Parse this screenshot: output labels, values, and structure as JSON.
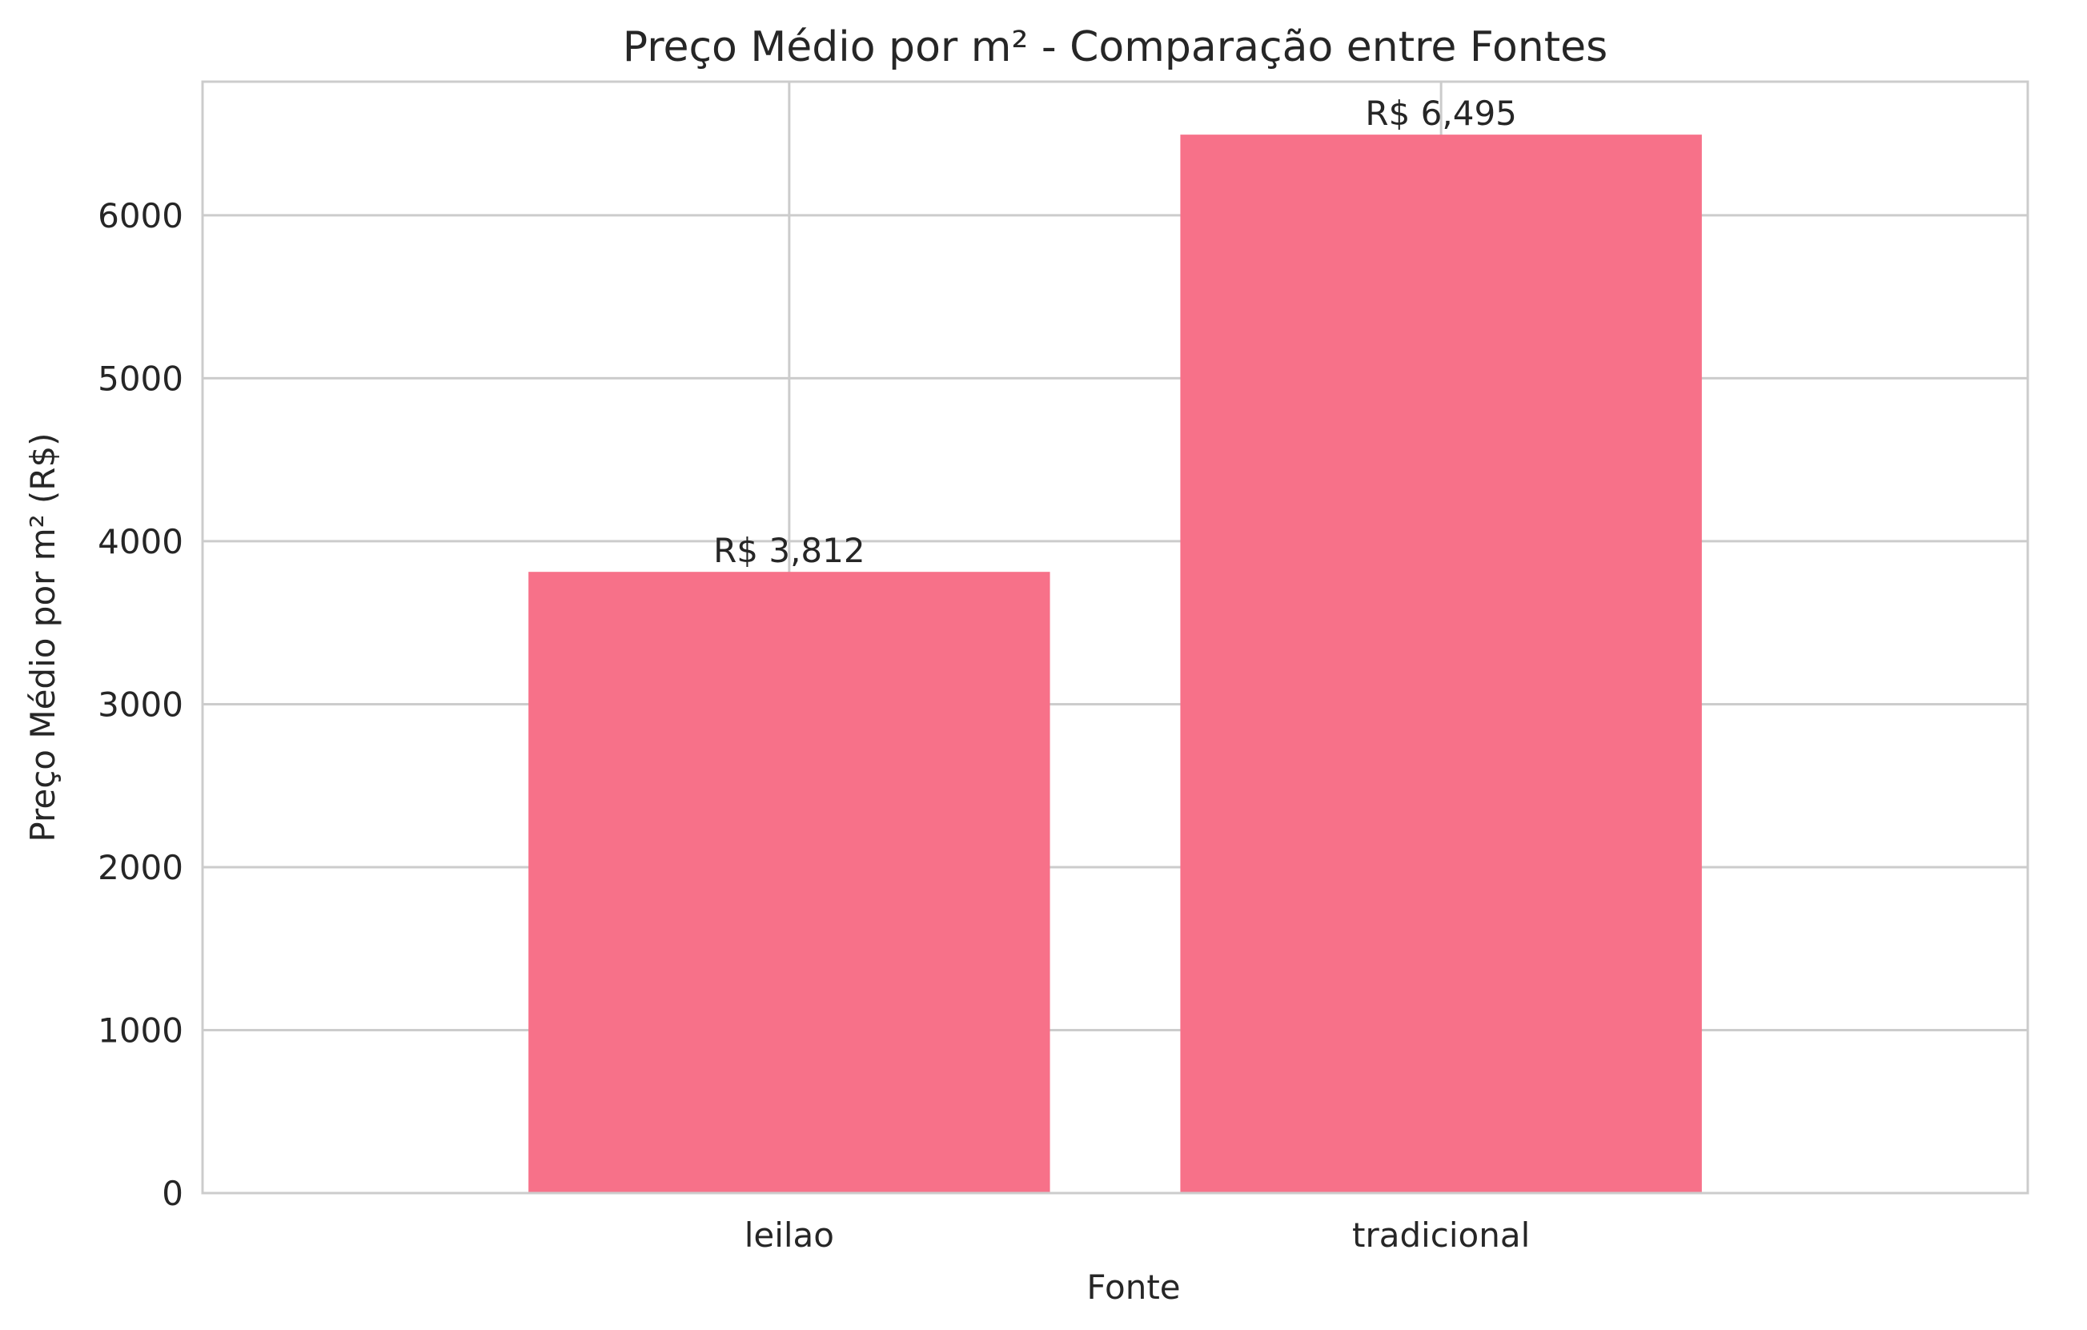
{
  "chart_data": {
    "type": "bar",
    "title": "Preço Médio por m² - Comparação entre Fontes",
    "xlabel": "Fonte",
    "ylabel": "Preço Médio por m² (R$)",
    "categories": [
      "leilao",
      "tradicional"
    ],
    "values": [
      3812,
      6495
    ],
    "bar_labels": [
      "R$ 3,812",
      "R$ 6,495"
    ],
    "ylim": [
      0,
      6820
    ],
    "yticks": [
      0,
      1000,
      2000,
      3000,
      4000,
      5000,
      6000
    ],
    "grid": true,
    "bar_color": "#f77189",
    "grid_color": "#cccccc"
  }
}
